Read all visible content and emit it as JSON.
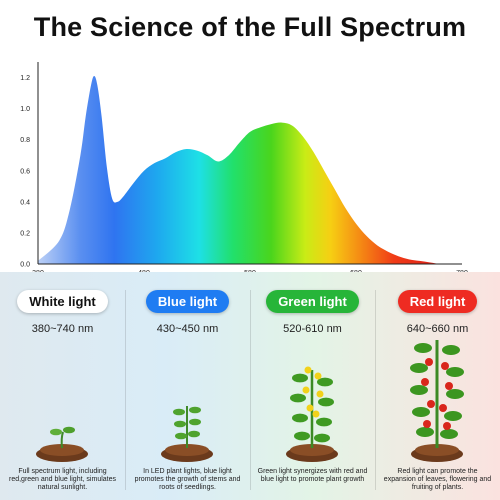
{
  "title": "The Science of the Full Spectrum",
  "chart_data": {
    "type": "area",
    "x": [
      380,
      400,
      410,
      420,
      425,
      430,
      433,
      436,
      440,
      445,
      450,
      455,
      460,
      470,
      480,
      490,
      500,
      510,
      520,
      530,
      540,
      550,
      560,
      570,
      580,
      590,
      600,
      610,
      620,
      630,
      640,
      650,
      660,
      670,
      680,
      690,
      700,
      710,
      720,
      730,
      740,
      750,
      760,
      770,
      780
    ],
    "y": [
      0.02,
      0.15,
      0.35,
      0.7,
      0.95,
      1.15,
      1.21,
      1.15,
      0.95,
      0.62,
      0.42,
      0.4,
      0.43,
      0.52,
      0.6,
      0.65,
      0.68,
      0.72,
      0.74,
      0.73,
      0.7,
      0.66,
      0.7,
      0.78,
      0.85,
      0.88,
      0.9,
      0.91,
      0.89,
      0.82,
      0.72,
      0.6,
      0.48,
      0.36,
      0.26,
      0.18,
      0.12,
      0.08,
      0.05,
      0.03,
      0.02,
      0.01,
      0.0,
      0.0,
      0.0
    ],
    "xlim": [
      380,
      780
    ],
    "ylim": [
      0,
      1.3
    ],
    "x_ticks": [
      380,
      480,
      580,
      680,
      780
    ],
    "y_ticks": [
      0.0,
      0.2,
      0.4,
      0.6,
      0.8,
      1.0,
      1.2
    ],
    "y_tick_labels": [
      "0.0",
      "0.2",
      "0.4",
      "0.6",
      "0.8",
      "1.0",
      "1.2"
    ],
    "grid": false
  },
  "panels": [
    {
      "label": "White light",
      "range": "380~740 nm",
      "desc": "Full spectrum light, including red,green and blue light, simulates natural sunlight.",
      "plant": "seedling",
      "bg": "#dfe9ef"
    },
    {
      "label": "Blue light",
      "range": "430~450 nm",
      "desc": "In LED plant lights, blue light promotes the growth of stems and roots of seedlings.",
      "plant": "sprout",
      "bg": "#d9ecf7"
    },
    {
      "label": "Green light",
      "range": "520-610 nm",
      "desc": "Green light synergizes with red and blue light to promote plant growth",
      "plant": "flowering",
      "bg": "#e3f4e6"
    },
    {
      "label": "Red light",
      "range": "640~660 nm",
      "desc": "Red light can promote the expansion of leaves, flowering and fruiting of plants.",
      "plant": "fruiting",
      "bg": "#fbe2df"
    }
  ],
  "colors": {
    "blue": "#1f7cf2",
    "green": "#27b539",
    "red": "#ee2b22",
    "axis": "#222222"
  }
}
